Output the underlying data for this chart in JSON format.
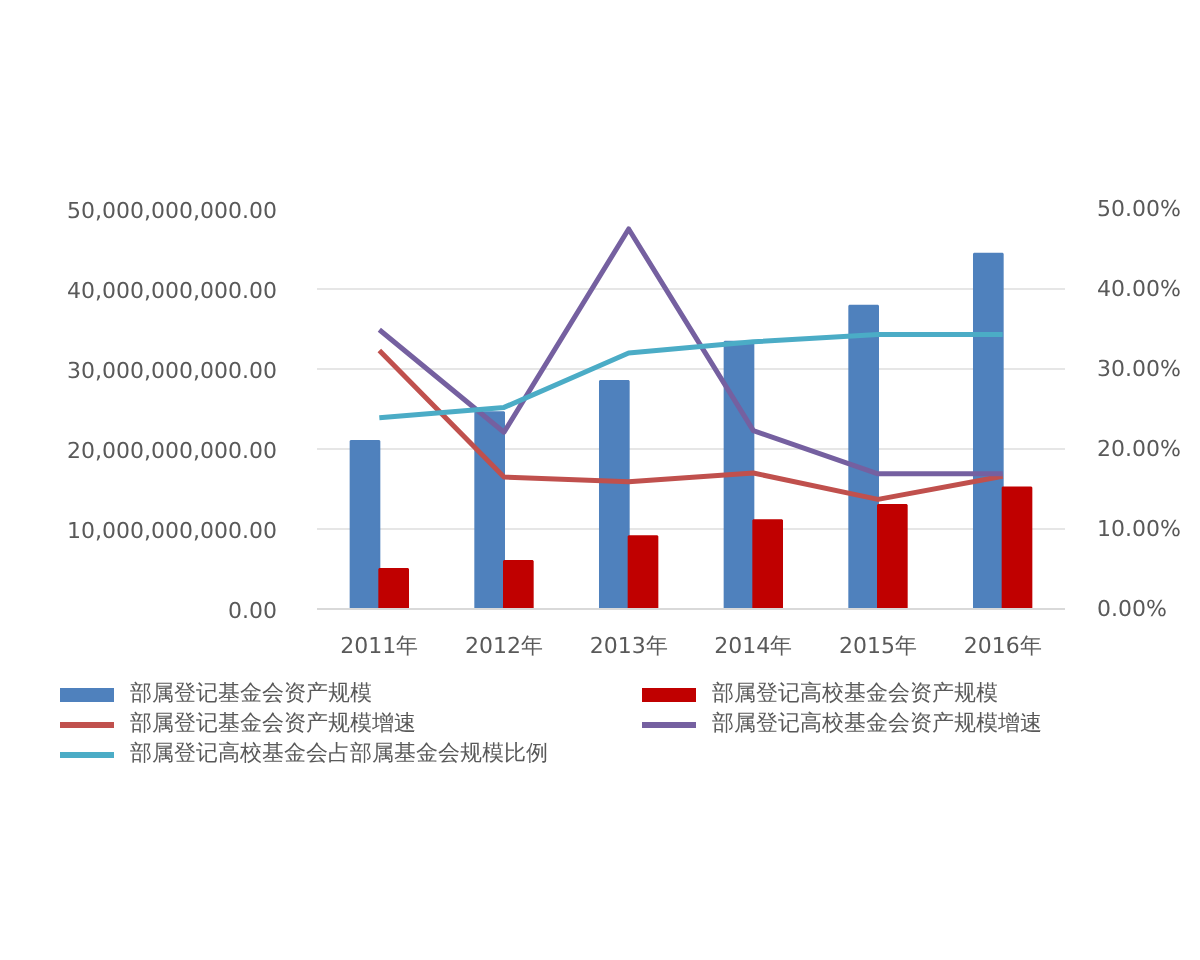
{
  "chart_data": {
    "type": "bar",
    "categories": [
      "2011年",
      "2012年",
      "2013年",
      "2014年",
      "2015年",
      "2016年"
    ],
    "series": [
      {
        "name": "部属登记基金会资产规模",
        "color": "#4f81bd",
        "values": [
          21000000000,
          24600000000,
          28500000000,
          33400000000,
          37900000000,
          44400000000
        ]
      },
      {
        "name": "部属登记高校基金会资产规模",
        "color": "#c00000",
        "values": [
          5000000000,
          6000000000,
          9100000000,
          11100000000,
          13000000000,
          15200000000
        ]
      },
      {
        "name": "部属登记基金会资产规模增速",
        "type": "line",
        "axis": "y2",
        "color": "#c0504d",
        "values": [
          32.3,
          16.5,
          15.9,
          17.0,
          13.7,
          16.6
        ]
      },
      {
        "name": "部属登记高校基金会资产规模增速",
        "type": "line",
        "axis": "y2",
        "color": "#7560a0",
        "values": [
          34.9,
          22.1,
          47.5,
          22.3,
          16.9,
          16.9
        ]
      },
      {
        "name": "部属登记高校基金会占部属基金会规模比例",
        "type": "line",
        "axis": "y2",
        "color": "#4bacc6",
        "values": [
          23.9,
          25.2,
          32.0,
          33.4,
          34.3,
          34.3
        ]
      }
    ],
    "ylim": [
      0,
      50000000000
    ],
    "yticks": [
      {
        "value": 0,
        "label": "0.00"
      },
      {
        "value": 10000000000,
        "label": "10,000,000,000.00"
      },
      {
        "value": 20000000000,
        "label": "20,000,000,000.00"
      },
      {
        "value": 30000000000,
        "label": "30,000,000,000.00"
      },
      {
        "value": 40000000000,
        "label": "40,000,000,000.00"
      },
      {
        "value": 50000000000,
        "label": "50,000,000,000.00"
      }
    ],
    "y2lim": [
      0,
      50
    ],
    "y2ticks": [
      {
        "value": 0,
        "label": "0.00%"
      },
      {
        "value": 10,
        "label": "10.00%"
      },
      {
        "value": 20,
        "label": "20.00%"
      },
      {
        "value": 30,
        "label": "30.00%"
      },
      {
        "value": 40,
        "label": "40.00%"
      },
      {
        "value": 50,
        "label": "50.00%"
      }
    ],
    "grid": "y",
    "legend": "bottom"
  }
}
